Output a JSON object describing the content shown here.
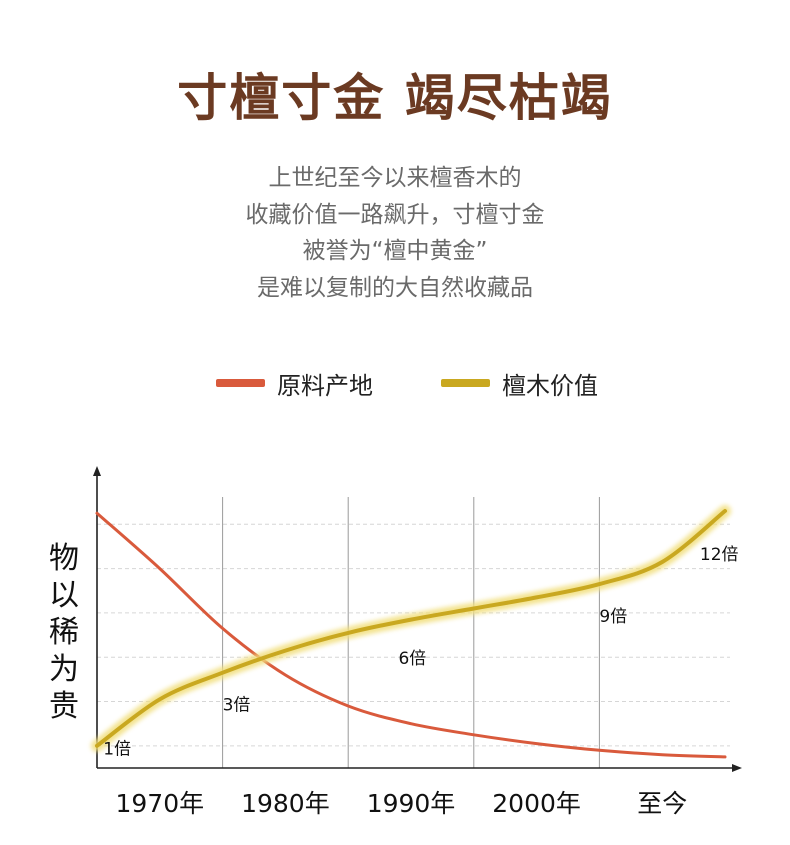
{
  "title": "寸檀寸金 竭尽枯竭",
  "subtitle_lines": [
    "上世纪至今以来檀香木的",
    "收藏价值一路飙升，寸檀寸金",
    "被誉为“檀中黄金”",
    "是难以复制的大自然收藏品"
  ],
  "legend": [
    {
      "label": "原料产地",
      "color": "#d95a3c"
    },
    {
      "label": "檀木价值",
      "color": "#c9a820"
    }
  ],
  "ylabel_chars": [
    "物",
    "以",
    "稀",
    "为",
    "贵"
  ],
  "chart_data": {
    "type": "line",
    "title": "",
    "xlabel": "",
    "ylabel": "物以稀为贵",
    "categories": [
      "1970年",
      "1980年",
      "1990年",
      "2000年",
      "至今"
    ],
    "grid": true,
    "legend_position": "top-center",
    "series": [
      {
        "name": "原料产地",
        "color": "#d95a3c",
        "x": [
          0,
          0.5,
          1,
          1.5,
          2,
          2.5,
          3,
          3.5,
          4,
          4.5,
          5
        ],
        "y": [
          10.5,
          8.0,
          5.3,
          3.2,
          1.8,
          1.0,
          0.5,
          0.1,
          -0.2,
          -0.4,
          -0.5
        ]
      },
      {
        "name": "檀木价值",
        "color": "#c9a820",
        "x": [
          0,
          0.5,
          1,
          1.5,
          2,
          2.5,
          3,
          3.5,
          4,
          4.5,
          5
        ],
        "y": [
          0,
          2.1,
          3.3,
          4.3,
          5.1,
          5.7,
          6.2,
          6.7,
          7.3,
          8.3,
          10.6
        ]
      }
    ],
    "annotations": [
      {
        "text": "1倍",
        "x": 0.05,
        "y": -0.4
      },
      {
        "text": "3倍",
        "x": 1.0,
        "y": 1.6
      },
      {
        "text": "6倍",
        "x": 2.4,
        "y": 3.7
      },
      {
        "text": "9倍",
        "x": 4.0,
        "y": 5.6
      },
      {
        "text": "12倍",
        "x": 4.8,
        "y": 8.4
      }
    ],
    "ylim": [
      -1,
      12
    ],
    "xlim": [
      0,
      5
    ]
  }
}
